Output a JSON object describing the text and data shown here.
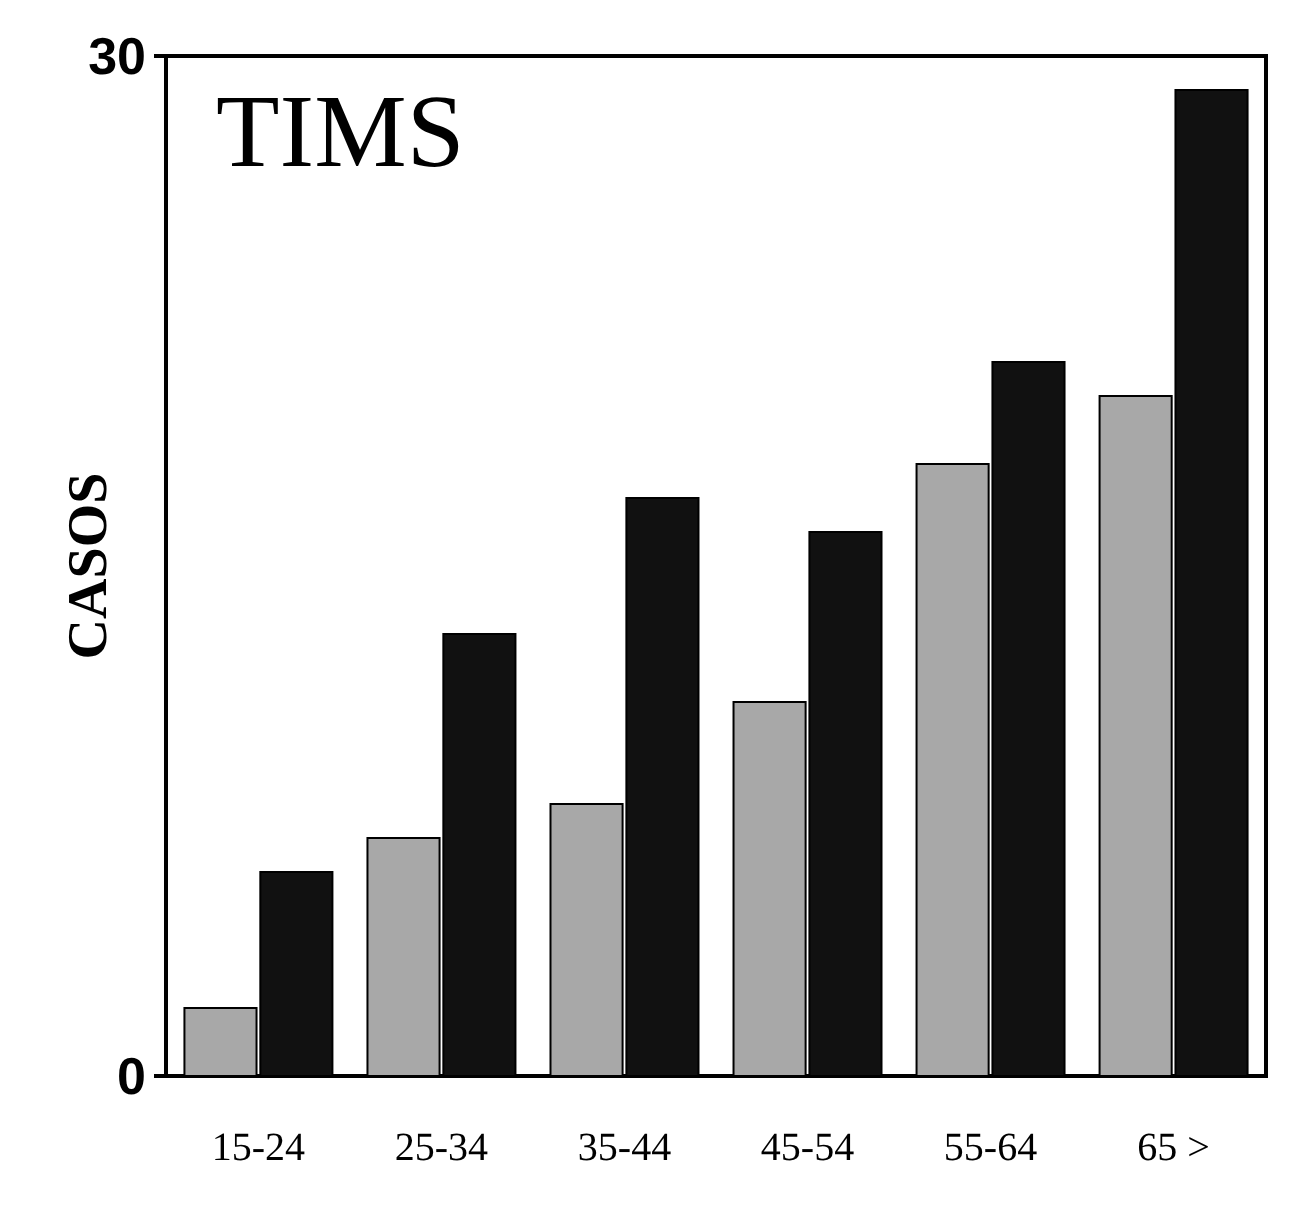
{
  "chart_data": {
    "type": "bar",
    "title": "TIMS",
    "ylabel": "CASOS",
    "categories": [
      "15-24",
      "25-34",
      "35-44",
      "45-54",
      "55-64",
      "65 >"
    ],
    "series": [
      {
        "color": "#a8a8a8",
        "values": [
          2,
          7,
          8,
          11,
          18,
          20
        ]
      },
      {
        "color": "#111111",
        "values": [
          6,
          13,
          17,
          16,
          21,
          29
        ]
      }
    ],
    "ylim": [
      0,
      30
    ],
    "yticks": [
      0,
      30
    ],
    "grid": false
  }
}
